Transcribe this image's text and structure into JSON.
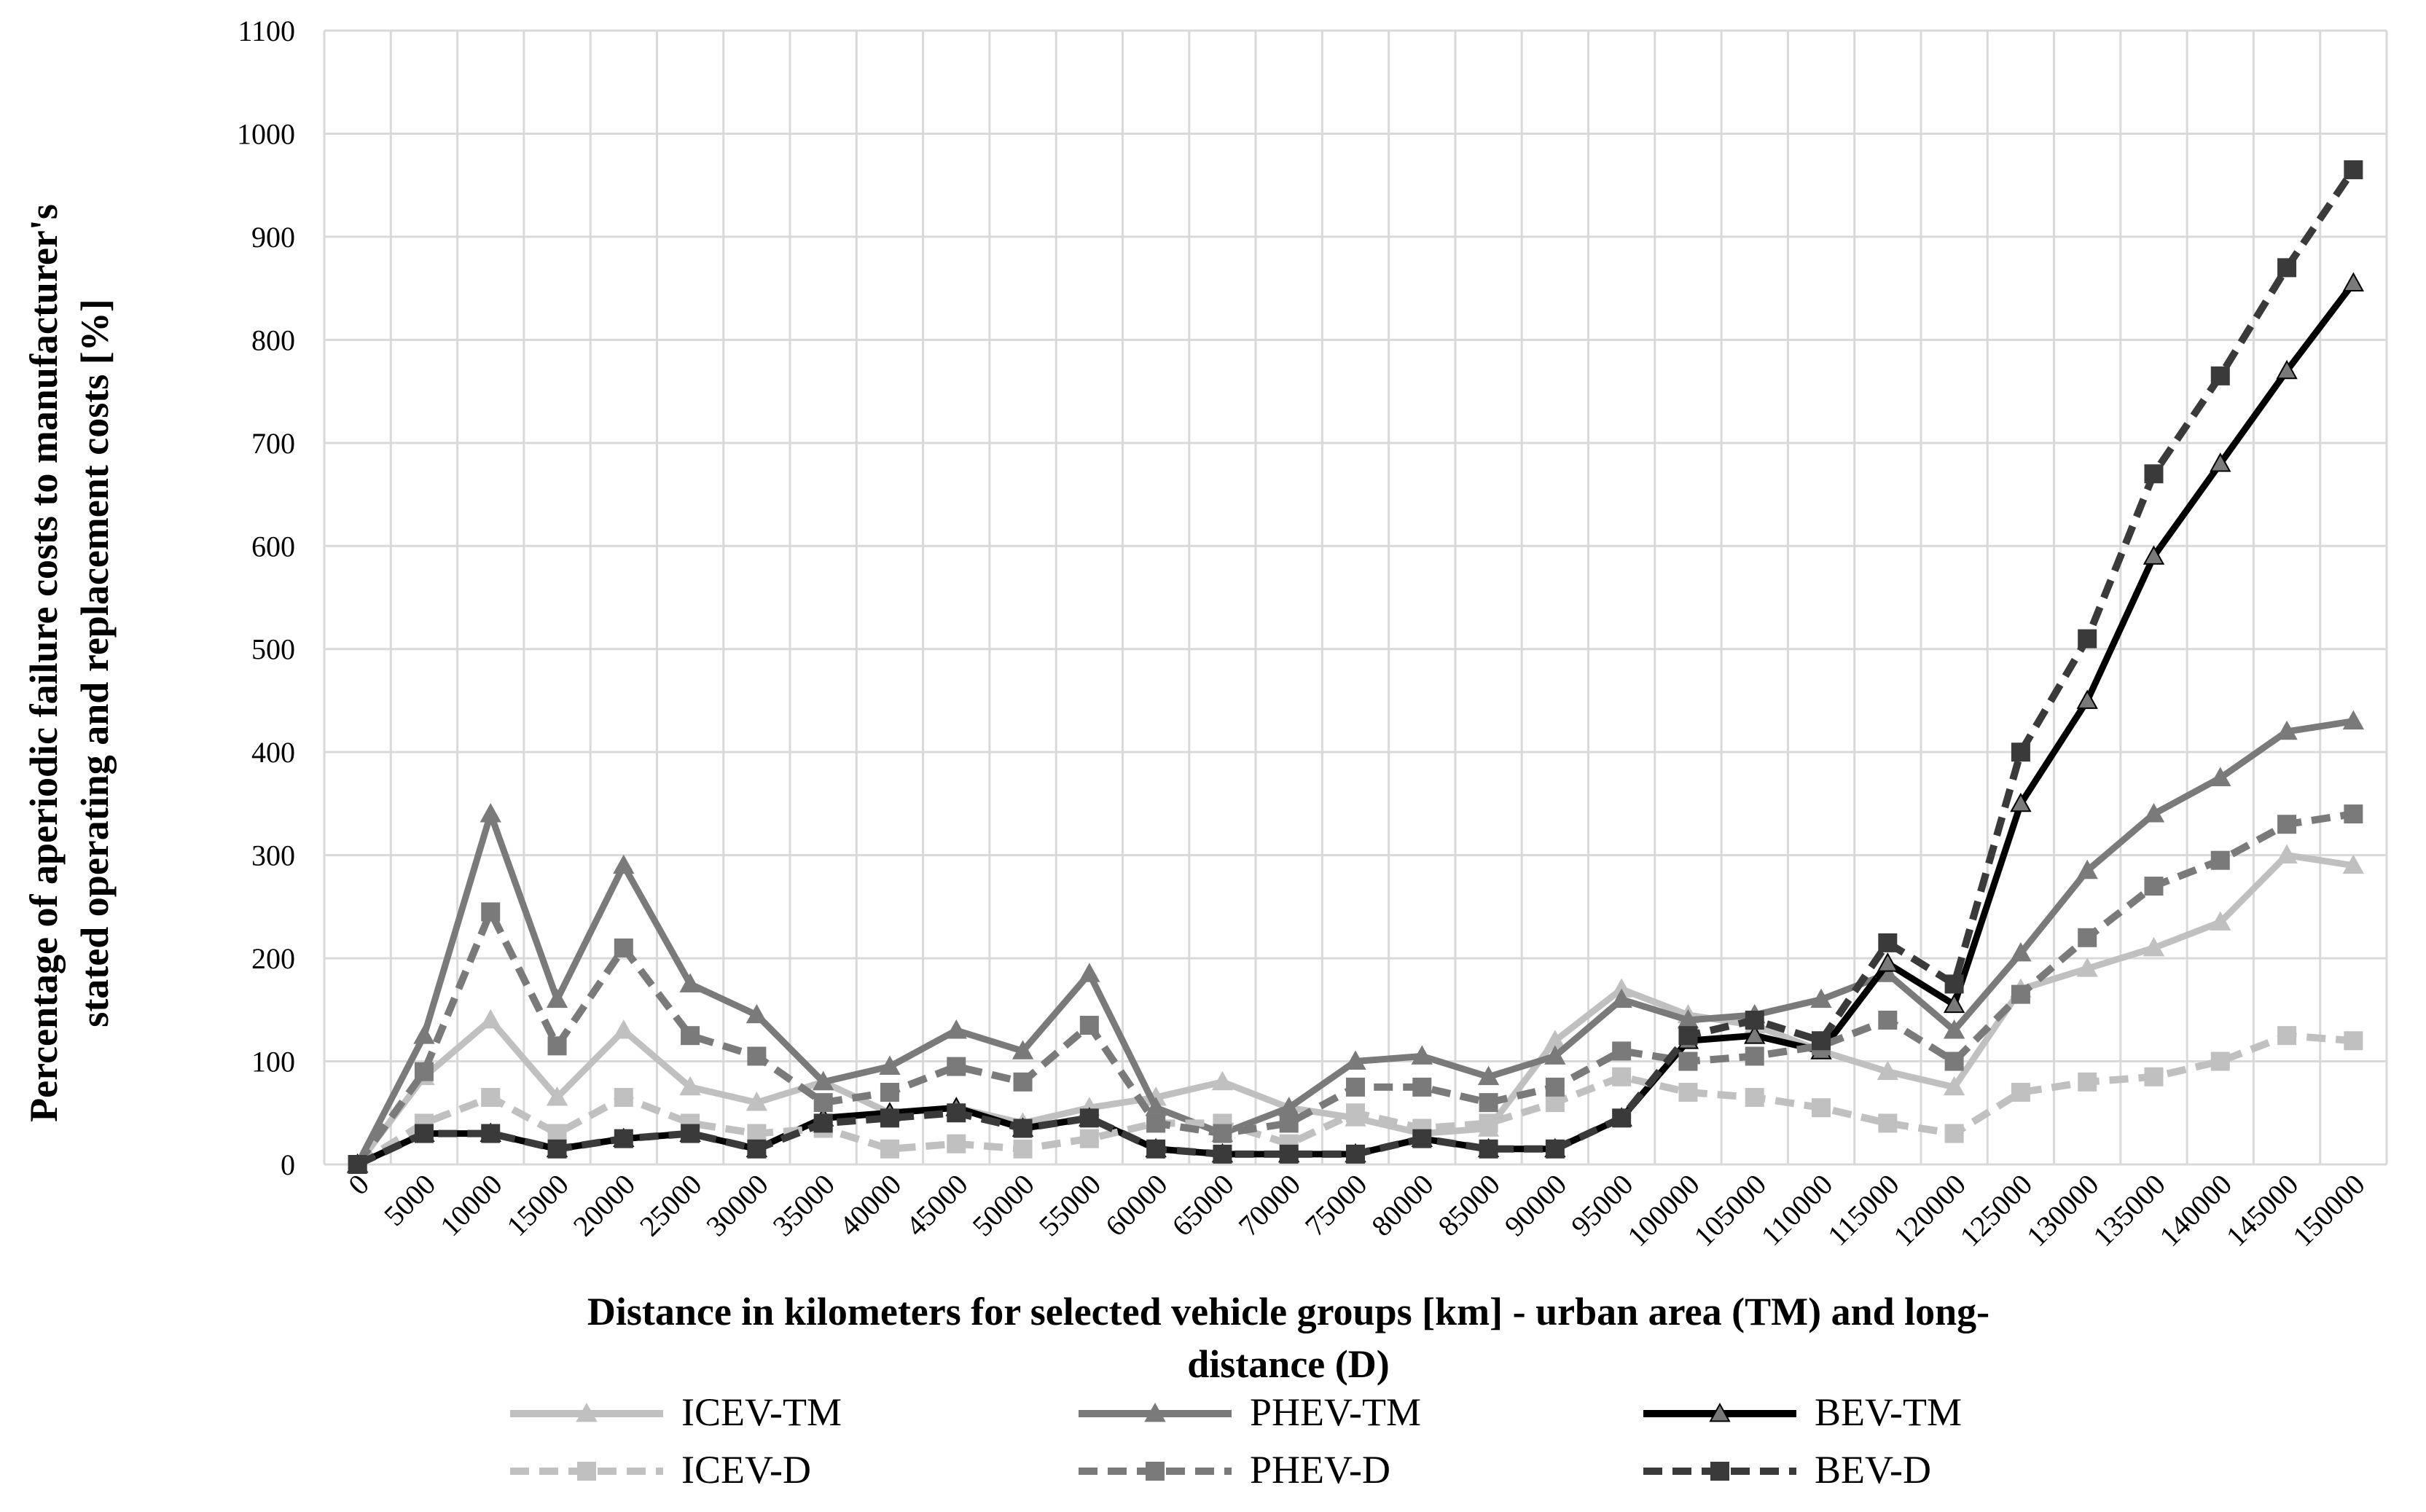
{
  "chart_data": {
    "type": "line",
    "ylabel_line1": "Percentage of aperiodic failure costs to manufacturer's",
    "ylabel_line2": "stated operating and replacement costs [%]",
    "xlabel_line1": "Distance in kilometers for selected vehicle groups [km] - urban area (TM) and long-",
    "xlabel_line2": "distance (D)",
    "ylim": [
      0,
      1100
    ],
    "yticks": [
      0,
      100,
      200,
      300,
      400,
      500,
      600,
      700,
      800,
      900,
      1000,
      1100
    ],
    "grid": true,
    "legend_position": "bottom",
    "categories": [
      "0",
      "5000",
      "10000",
      "15000",
      "20000",
      "25000",
      "30000",
      "35000",
      "40000",
      "45000",
      "50000",
      "55000",
      "60000",
      "65000",
      "70000",
      "75000",
      "80000",
      "85000",
      "90000",
      "95000",
      "100000",
      "105000",
      "110000",
      "115000",
      "120000",
      "125000",
      "130000",
      "135000",
      "140000",
      "145000",
      "150000"
    ],
    "series": [
      {
        "name": "ICEV-TM",
        "color": "#c0c0c0",
        "dash": "solid",
        "marker": "triangle",
        "values": [
          0,
          85,
          140,
          65,
          130,
          75,
          60,
          80,
          50,
          55,
          40,
          55,
          65,
          80,
          55,
          45,
          30,
          35,
          120,
          170,
          145,
          135,
          110,
          90,
          75,
          170,
          190,
          210,
          235,
          300,
          290
        ]
      },
      {
        "name": "PHEV-TM",
        "color": "#7a7a7a",
        "dash": "solid",
        "marker": "triangle",
        "values": [
          0,
          125,
          340,
          160,
          290,
          175,
          145,
          80,
          95,
          130,
          110,
          185,
          55,
          30,
          55,
          100,
          105,
          85,
          105,
          160,
          140,
          145,
          160,
          185,
          130,
          205,
          285,
          340,
          375,
          420,
          430
        ]
      },
      {
        "name": "BEV-TM",
        "color": "#000000",
        "dash": "solid",
        "marker": "triangle",
        "values": [
          0,
          30,
          30,
          15,
          25,
          30,
          15,
          45,
          50,
          55,
          35,
          45,
          15,
          10,
          10,
          10,
          25,
          15,
          15,
          45,
          120,
          125,
          110,
          195,
          155,
          350,
          450,
          590,
          680,
          770,
          855
        ]
      },
      {
        "name": "ICEV-D",
        "color": "#c0c0c0",
        "dash": "dashed",
        "marker": "square",
        "values": [
          0,
          40,
          65,
          30,
          65,
          40,
          30,
          35,
          15,
          20,
          15,
          25,
          40,
          40,
          20,
          50,
          35,
          40,
          60,
          85,
          70,
          65,
          55,
          40,
          30,
          70,
          80,
          85,
          100,
          125,
          120
        ]
      },
      {
        "name": "PHEV-D",
        "color": "#7a7a7a",
        "dash": "dashed",
        "marker": "square",
        "values": [
          0,
          90,
          245,
          115,
          210,
          125,
          105,
          60,
          70,
          95,
          80,
          135,
          40,
          30,
          40,
          75,
          75,
          60,
          75,
          110,
          100,
          105,
          115,
          140,
          100,
          165,
          220,
          270,
          295,
          330,
          340
        ]
      },
      {
        "name": "BEV-D",
        "color": "#3a3a3a",
        "dash": "dashed",
        "marker": "square",
        "values": [
          0,
          30,
          30,
          15,
          25,
          30,
          15,
          40,
          45,
          50,
          35,
          45,
          15,
          10,
          10,
          10,
          25,
          15,
          15,
          45,
          125,
          140,
          120,
          215,
          175,
          400,
          510,
          670,
          765,
          870,
          965
        ]
      }
    ]
  }
}
